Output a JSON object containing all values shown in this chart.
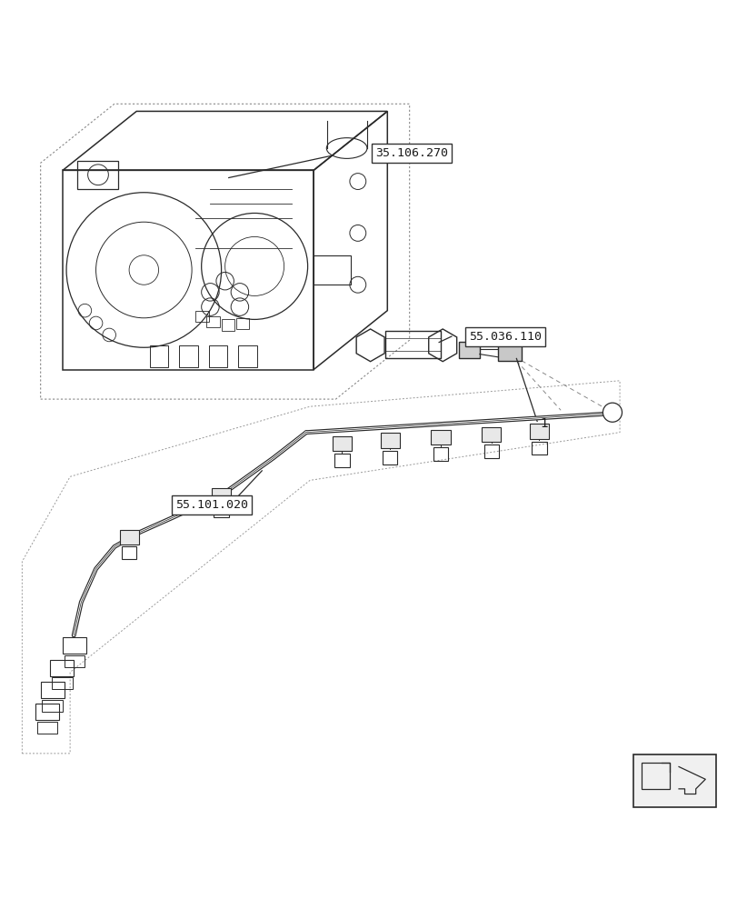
{
  "bg_color": "#ffffff",
  "line_color": "#2a2a2a",
  "label_box_color": "#ffffff",
  "label_border_color": "#555555",
  "labels": {
    "ref1": "35.106.270",
    "ref2": "55.036.110",
    "ref3": "55.101.020",
    "item1": "1"
  },
  "font_size_label": 9.5
}
